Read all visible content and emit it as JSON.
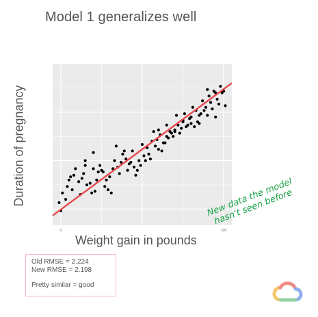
{
  "slide": {
    "title": "Model 1 generalizes well",
    "handwritten_note": [
      "New data the model",
      "hasn't seen before"
    ],
    "rmse_box": {
      "old": "Old RMSE = 2.224",
      "new": "New RMSE = 2.198",
      "verdict": "Pretty similar = good"
    },
    "logo_icon": "google-cloud-logo-icon"
  },
  "chart_data": {
    "type": "scatter",
    "xlabel": "Weight gain in pounds",
    "ylabel": "Duration of pregnancy",
    "xlim": [
      -5,
      105
    ],
    "ylim": [
      0,
      100
    ],
    "x_ticks": [
      0,
      50,
      100
    ],
    "x_tick_labels": [
      "0",
      "",
      "100"
    ],
    "grid": true,
    "background": "#ebebeb",
    "point_color": "#000000",
    "fit_line": {
      "color": "#e8484d",
      "x": [
        -5,
        105
      ],
      "y": [
        6,
        88
      ]
    },
    "points": [
      [
        -1,
        14
      ],
      [
        0,
        9
      ],
      [
        1,
        20
      ],
      [
        3,
        16
      ],
      [
        4,
        24
      ],
      [
        5,
        28
      ],
      [
        6,
        30
      ],
      [
        7,
        22
      ],
      [
        8,
        31
      ],
      [
        9,
        35
      ],
      [
        11,
        27
      ],
      [
        12,
        19
      ],
      [
        13,
        29
      ],
      [
        14,
        32
      ],
      [
        15,
        37
      ],
      [
        16,
        25
      ],
      [
        18,
        26
      ],
      [
        19,
        20
      ],
      [
        20,
        35
      ],
      [
        21,
        21
      ],
      [
        22,
        28
      ],
      [
        23,
        33
      ],
      [
        24,
        37
      ],
      [
        25,
        34
      ],
      [
        26,
        33
      ],
      [
        27,
        24
      ],
      [
        28,
        28
      ],
      [
        29,
        22
      ],
      [
        30,
        30
      ],
      [
        31,
        20
      ],
      [
        32,
        35
      ],
      [
        33,
        40
      ],
      [
        34,
        49
      ],
      [
        35,
        36
      ],
      [
        36,
        32
      ],
      [
        37,
        39
      ],
      [
        38,
        44
      ],
      [
        39,
        46
      ],
      [
        40,
        41
      ],
      [
        41,
        34
      ],
      [
        42,
        38
      ],
      [
        43,
        39
      ],
      [
        44,
        46
      ],
      [
        45,
        36
      ],
      [
        46,
        31
      ],
      [
        47,
        34
      ],
      [
        48,
        40
      ],
      [
        49,
        37
      ],
      [
        50,
        50
      ],
      [
        51,
        43
      ],
      [
        52,
        40
      ],
      [
        53,
        48
      ],
      [
        54,
        44
      ],
      [
        55,
        41
      ],
      [
        56,
        52
      ],
      [
        57,
        58
      ],
      [
        58,
        49
      ],
      [
        59,
        53
      ],
      [
        60,
        47
      ],
      [
        61,
        56
      ],
      [
        62,
        46
      ],
      [
        63,
        51
      ],
      [
        64,
        51
      ],
      [
        65,
        55
      ],
      [
        66,
        54
      ],
      [
        67,
        58
      ],
      [
        68,
        57
      ],
      [
        69,
        55
      ],
      [
        70,
        58
      ],
      [
        71,
        68
      ],
      [
        72,
        62
      ],
      [
        73,
        57
      ],
      [
        74,
        60
      ],
      [
        75,
        65
      ],
      [
        76,
        69
      ],
      [
        77,
        61
      ],
      [
        78,
        62
      ],
      [
        79,
        66
      ],
      [
        80,
        67
      ],
      [
        81,
        73
      ],
      [
        82,
        61
      ],
      [
        83,
        71
      ],
      [
        84,
        64
      ],
      [
        85,
        63
      ],
      [
        86,
        69
      ],
      [
        87,
        77
      ],
      [
        88,
        71
      ],
      [
        89,
        73
      ],
      [
        90,
        68
      ],
      [
        91,
        80
      ],
      [
        92,
        76
      ],
      [
        93,
        72
      ],
      [
        94,
        83
      ],
      [
        95,
        67
      ],
      [
        96,
        78
      ],
      [
        97,
        75
      ],
      [
        98,
        86
      ],
      [
        99,
        82
      ],
      [
        100,
        83
      ],
      [
        101,
        74
      ],
      [
        60,
        59
      ],
      [
        65,
        62
      ],
      [
        70,
        59
      ],
      [
        75,
        64
      ],
      [
        80,
        63
      ],
      [
        85,
        68
      ],
      [
        90,
        84
      ],
      [
        95,
        82
      ],
      [
        20,
        45
      ],
      [
        15,
        40
      ]
    ]
  }
}
